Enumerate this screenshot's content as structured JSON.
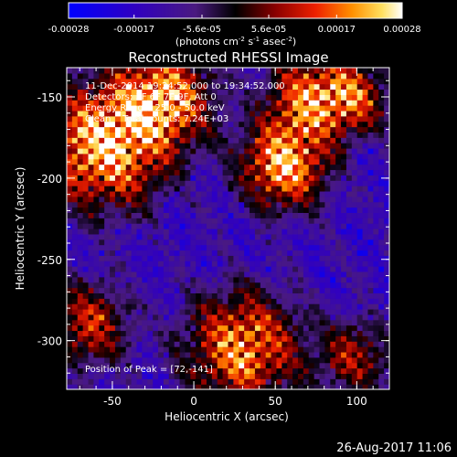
{
  "chart_data": {
    "type": "heatmap",
    "title": "Reconstructed RHESSI Image",
    "xlabel": "Heliocentric X (arcsec)",
    "ylabel": "Heliocentric Y (arcsec)",
    "xlim": [
      -78,
      120
    ],
    "ylim": [
      -330,
      -132
    ],
    "x_ticks": [
      -50,
      0,
      50,
      100
    ],
    "y_ticks": [
      -150,
      -200,
      -250,
      -300
    ],
    "colorbar": {
      "min": -0.00028,
      "max": 0.00028,
      "tick_values": [
        -0.00028,
        -0.00017,
        -5.6e-05,
        5.6e-05,
        0.00017,
        0.00028
      ],
      "tick_labels": [
        "-0.00028",
        "-0.00017",
        "-5.6e-05",
        "5.6e-05",
        "0.00017",
        "0.00028"
      ],
      "unit_label": "(photons cm",
      "unit_sup1": "-2",
      "unit_mid": " s",
      "unit_sup2": "-1",
      "unit_mid2": " asec",
      "unit_sup3": "-2",
      "unit_end": ")"
    },
    "annotations": [
      "11-Dec-2014 19:24:52.000 to 19:34:52.000",
      "Detectors: 3F 6F 7F 9F, Att 0",
      "Energy Range: 25.0 - 50.0 keV",
      "Clean    Total counts: 7.24E+03"
    ],
    "peak_label": "Position of Peak = [72,-141]",
    "peak": [
      72,
      -141
    ],
    "sources": [
      {
        "x": -55,
        "y": -180,
        "amp": 1.0,
        "sigma": 26
      },
      {
        "x": -18,
        "y": -150,
        "amp": 0.85,
        "sigma": 20
      },
      {
        "x": 55,
        "y": -192,
        "amp": 0.95,
        "sigma": 18
      },
      {
        "x": 72,
        "y": -150,
        "amp": 0.8,
        "sigma": 18
      },
      {
        "x": 30,
        "y": -305,
        "amp": 0.85,
        "sigma": 24
      },
      {
        "x": -65,
        "y": -290,
        "amp": 0.6,
        "sigma": 18
      },
      {
        "x": 100,
        "y": -310,
        "amp": 0.5,
        "sigma": 16
      },
      {
        "x": 100,
        "y": -150,
        "amp": 0.55,
        "sigma": 15
      }
    ]
  },
  "footer": {
    "date": "26-Aug-2017 11:06"
  },
  "colors": {
    "background": "#000000",
    "axis": "#ffffff",
    "text": "#ffffff"
  }
}
